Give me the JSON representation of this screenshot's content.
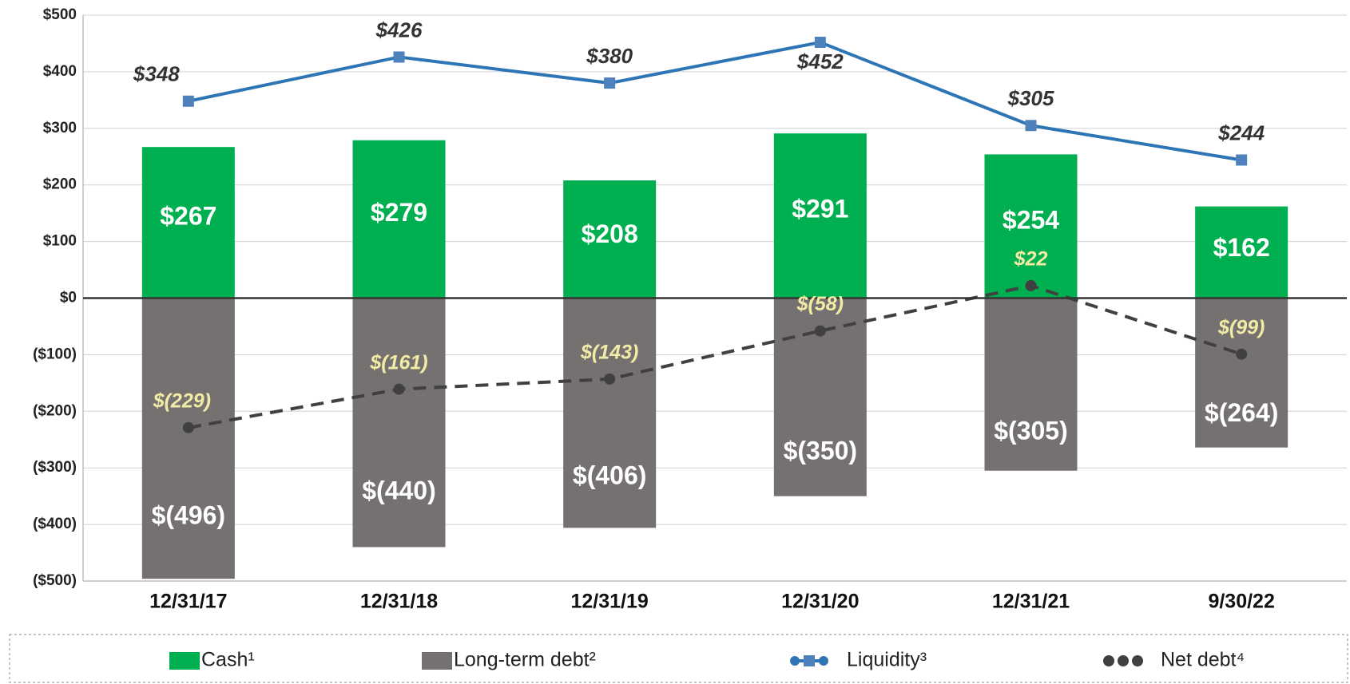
{
  "chart_data": {
    "type": "bar",
    "categories": [
      "12/31/17",
      "12/31/18",
      "12/31/19",
      "12/31/20",
      "12/31/21",
      "9/30/22"
    ],
    "ylim": [
      -500,
      500
    ],
    "yticks": [
      {
        "value": 500,
        "label": "$500"
      },
      {
        "value": 400,
        "label": "$400"
      },
      {
        "value": 300,
        "label": "$300"
      },
      {
        "value": 200,
        "label": "$200"
      },
      {
        "value": 100,
        "label": "$100"
      },
      {
        "value": 0,
        "label": "$0"
      },
      {
        "value": -100,
        "label": "($100)"
      },
      {
        "value": -200,
        "label": "($200)"
      },
      {
        "value": -300,
        "label": "($300)"
      },
      {
        "value": -400,
        "label": "($400)"
      },
      {
        "value": -500,
        "label": "($500)"
      }
    ],
    "grid": true,
    "series": [
      {
        "name": "Cash¹",
        "type": "bar",
        "color": "#00b050",
        "values": [
          267,
          279,
          208,
          291,
          254,
          162
        ],
        "value_labels": [
          "$267",
          "$279",
          "$208",
          "$291",
          "$254",
          "$162"
        ]
      },
      {
        "name": "Long-term debt²",
        "type": "bar",
        "color": "#767171",
        "values": [
          -496,
          -440,
          -406,
          -350,
          -305,
          -264
        ],
        "value_labels": [
          "$(496)",
          "$(440)",
          "$(406)",
          "$(350)",
          "$(305)",
          "$(264)"
        ]
      },
      {
        "name": "Liquidity³",
        "type": "line",
        "color": "#2e75b6",
        "marker": "square",
        "values": [
          348,
          426,
          380,
          452,
          305,
          244
        ],
        "value_labels": [
          "$348",
          "$426",
          "$380",
          "$452",
          "$305",
          "$244"
        ]
      },
      {
        "name": "Net debt⁴",
        "type": "line",
        "color": "#404040",
        "marker": "circle",
        "dashed": true,
        "values": [
          -229,
          -161,
          -143,
          -58,
          22,
          -99
        ],
        "value_labels": [
          "$(229)",
          "$(161)",
          "$(143)",
          "$(58)",
          "$22",
          "$(99)"
        ]
      }
    ]
  }
}
